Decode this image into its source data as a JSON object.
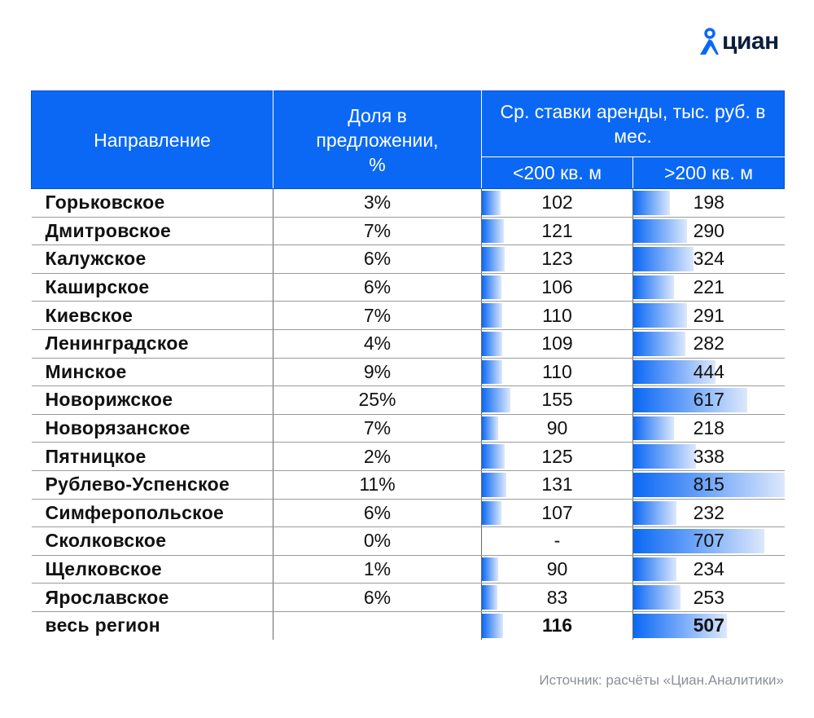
{
  "logo": {
    "text": "циан",
    "icon": "map-pin-person-icon",
    "color": "#0a68f5"
  },
  "table": {
    "headers": {
      "direction": "Направление",
      "share": "Доля в предложении, %",
      "rates": "Ср. ставки аренды, тыс. руб. в мес.",
      "small": "<200 кв. м",
      "large": ">200 кв. м"
    },
    "accent": "#0a68f5",
    "bar_max": 815,
    "rows": [
      {
        "name": "Горьковское",
        "share": "3%",
        "small": "102",
        "large": "198"
      },
      {
        "name": "Дмитровское",
        "share": "7%",
        "small": "121",
        "large": "290"
      },
      {
        "name": "Калужское",
        "share": "6%",
        "small": "123",
        "large": "324"
      },
      {
        "name": "Каширское",
        "share": "6%",
        "small": "106",
        "large": "221"
      },
      {
        "name": "Киевское",
        "share": "7%",
        "small": "110",
        "large": "291"
      },
      {
        "name": "Ленинградское",
        "share": "4%",
        "small": "109",
        "large": "282"
      },
      {
        "name": "Минское",
        "share": "9%",
        "small": "110",
        "large": "444"
      },
      {
        "name": "Новорижское",
        "share": "25%",
        "small": "155",
        "large": "617"
      },
      {
        "name": "Новорязанское",
        "share": "7%",
        "small": "90",
        "large": "218"
      },
      {
        "name": "Пятницкое",
        "share": "2%",
        "small": "125",
        "large": "338"
      },
      {
        "name": "Рублево-Успенское",
        "share": "11%",
        "small": "131",
        "large": "815"
      },
      {
        "name": "Симферопольское",
        "share": "6%",
        "small": "107",
        "large": "232"
      },
      {
        "name": "Сколковское",
        "share": "0%",
        "small": "-",
        "large": "707"
      },
      {
        "name": "Щелковское",
        "share": "1%",
        "small": "90",
        "large": "234"
      },
      {
        "name": "Ярославское",
        "share": "6%",
        "small": "83",
        "large": "253"
      },
      {
        "name": "весь регион",
        "share": "",
        "small": "116",
        "large": "507"
      }
    ]
  },
  "source": "Источник: расчёты «Циан.Аналитики»"
}
